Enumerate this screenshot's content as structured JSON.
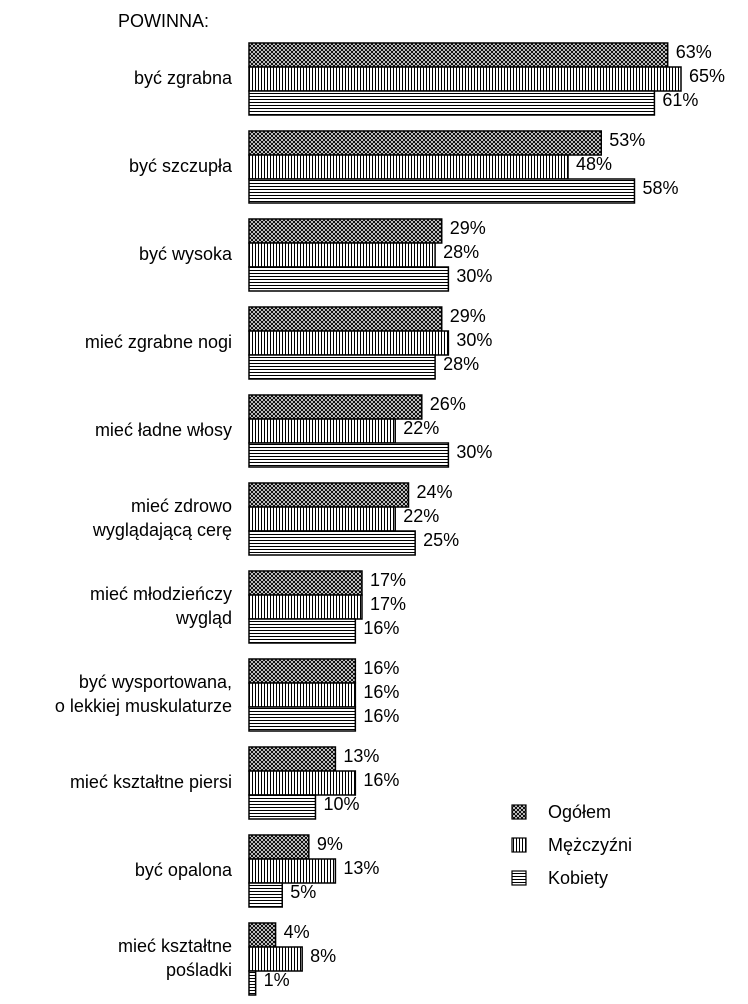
{
  "chart_data": {
    "type": "barh",
    "title": "POWINNA:",
    "categories": [
      "być zgrabna",
      "być szczupła",
      "być wysoka",
      "mieć zgrabne nogi",
      "mieć ładne włosy",
      "mieć zdrowo\nwyglądającą cerę",
      "mieć młodzieńczy\nwygląd",
      "być wysportowana,\no lekkiej muskulaturze",
      "mieć kształtne piersi",
      "być opalona",
      "mieć kształtne\npośladki"
    ],
    "series": [
      {
        "name": "Ogółem",
        "color": "#000000",
        "pattern": "crosshatch",
        "values": [
          63,
          53,
          29,
          29,
          26,
          24,
          17,
          16,
          13,
          9,
          4
        ],
        "value_labels": [
          "63%",
          "53%",
          "29%",
          "29%",
          "26%",
          "24%",
          "17%",
          "16%",
          "13%",
          "9%",
          "4%"
        ]
      },
      {
        "name": "Mężczyźni",
        "color": "#000000",
        "pattern": "vertical",
        "values": [
          65,
          48,
          28,
          30,
          22,
          22,
          17,
          16,
          16,
          13,
          8
        ],
        "value_labels": [
          "65%",
          "48%",
          "28%",
          "30%",
          "22%",
          "22%",
          "17%",
          "16%",
          "16%",
          "13%",
          "8%"
        ]
      },
      {
        "name": "Kobiety",
        "color": "#000000",
        "pattern": "horizontal",
        "values": [
          61,
          58,
          30,
          28,
          30,
          25,
          16,
          16,
          10,
          5,
          1
        ],
        "value_labels": [
          "61%",
          "58%",
          "30%",
          "28%",
          "30%",
          "25%",
          "16%",
          "16%",
          "10%",
          "5%",
          "1%"
        ]
      }
    ],
    "legend": "right"
  }
}
